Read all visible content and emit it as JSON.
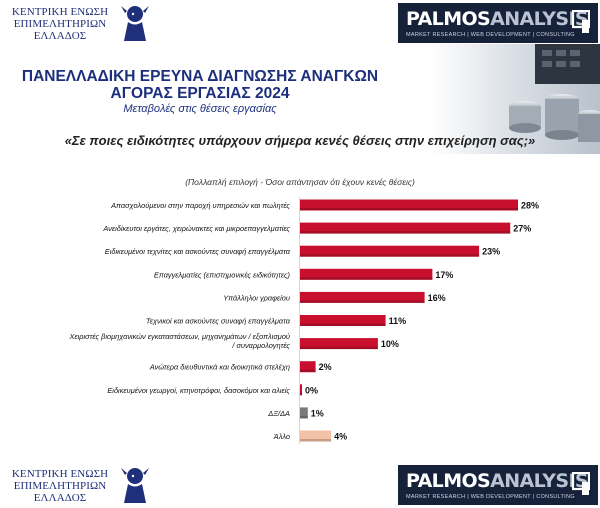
{
  "header": {
    "left_logo_lines": [
      "ΚΕΝΤΡΙΚΗ ΕΝΩΣΗ",
      "ΕΠΙΜΕΛΗΤΗΡΙΩΝ",
      "ΕΛΛΑΔΟΣ"
    ],
    "right_logo_name_a": "PALMOS",
    "right_logo_name_b": "ANALYSIS",
    "right_logo_tagline": "MARKET RESEARCH | WEB DEVELOPMENT | CONSULTING"
  },
  "title": {
    "line1": "ΠΑΝΕΛΛΑΔΙΚΗ ΕΡΕΥΝΑ ΔΙΑΓΝΩΣΗΣ ΑΝΑΓΚΩΝ",
    "line2": "ΑΓΟΡΑΣ ΕΡΓΑΣΙΑΣ 2024",
    "subtitle": "Μεταβολές στις θέσεις εργασίας"
  },
  "question": {
    "text": "«Σε ποιες ειδικότητες υπάρχουν σήμερα κενές θέσεις στην επιχείρηση σας;»",
    "note": "(Πολλαπλή επιλογή - Όσοι απάντησαν ότι έχουν κενές θέσεις)"
  },
  "colors": {
    "bar": "#c8102e",
    "bar_dk": "#7b7b7b",
    "bar_other": "#f2c1a6",
    "title": "#1c2f7d"
  },
  "chart_data": {
    "type": "bar",
    "orientation": "horizontal",
    "unit": "%",
    "xlim": [
      0,
      28
    ],
    "grid": false,
    "categories": [
      [
        "Απασχολούμενοι στην παροχή υπηρεσιών και πωλητές"
      ],
      [
        "Ανειδίκευτοι εργάτες, χειρώνακτες και μικροεπαγγελματίες"
      ],
      [
        "Ειδικευμένοι τεχνίτες και ασκούντες συναφή επαγγέλματα"
      ],
      [
        "Επαγγελματίες (επιστημονικές ειδικότητες)"
      ],
      [
        "Υπάλληλοι γραφείου"
      ],
      [
        "Τεχνικοί και ασκούντες συναφή επαγγέλματα"
      ],
      [
        "Χειριστές βιομηχανικών εγκαταστάσεων, μηχανημάτων / εξοπλισμού",
        "/ συναρμολογητές"
      ],
      [
        "Ανώτερα διευθυντικά και διοικητικά στελέχη"
      ],
      [
        "Ειδικευμένοι γεωργοί, κτηνοτρόφοι, δασοκόμοι και αλιείς"
      ],
      [
        "ΔΞ/ΔΑ"
      ],
      [
        "Άλλο"
      ]
    ],
    "values": [
      28,
      27,
      23,
      17,
      16,
      11,
      10,
      2,
      0,
      1,
      4
    ],
    "value_labels": [
      "28%",
      "27%",
      "23%",
      "17%",
      "16%",
      "11%",
      "10%",
      "2%",
      "0%",
      "1%",
      "4%"
    ]
  }
}
